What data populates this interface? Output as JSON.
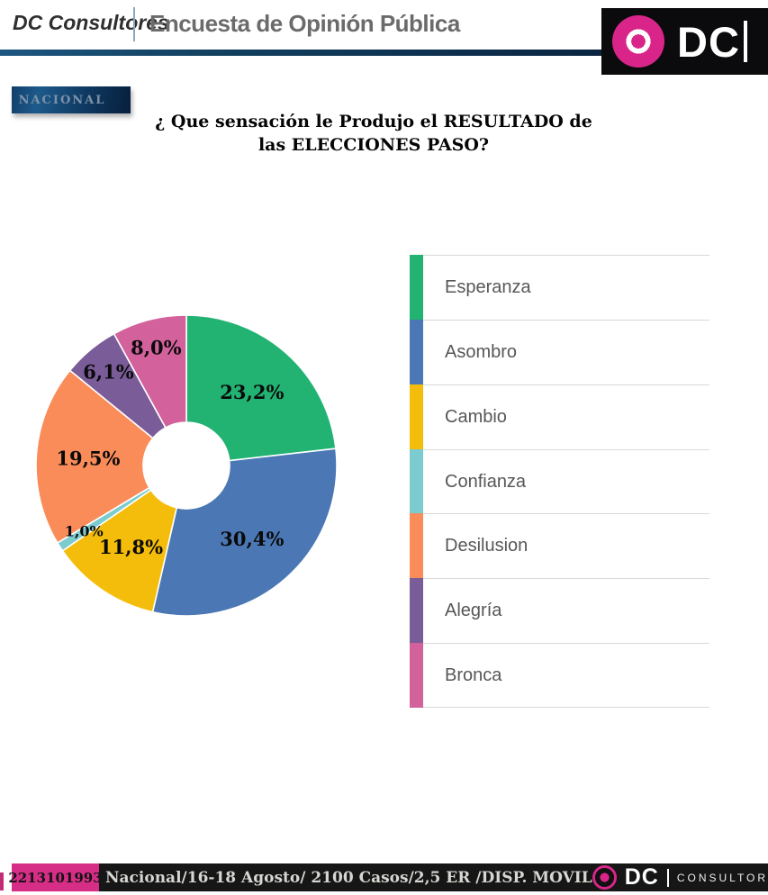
{
  "header": {
    "brand": "DC Consultores",
    "title": "Encuesta de Opinión Pública",
    "logo_text": "DC"
  },
  "region_badge": "NACIONAL",
  "question_line1": "¿ Que sensación le Produjo el RESULTADO de",
  "question_line2": "las ELECCIONES PASO?",
  "chart_data": {
    "type": "pie",
    "donut": true,
    "start_angle": "12 o'clock, clockwise",
    "title": "¿ Que sensación le Produjo el RESULTADO de las ELECCIONES PASO?",
    "categories": [
      "Esperanza",
      "Asombro",
      "Cambio",
      "Confianza",
      "Desilusion",
      "Alegría",
      "Bronca"
    ],
    "values": [
      23.2,
      30.4,
      11.8,
      1.0,
      19.5,
      6.1,
      8.0
    ],
    "value_labels": [
      "23,2%",
      "30,4%",
      "11,8%",
      "1,0%",
      "19,5%",
      "6,1%",
      "8,0%"
    ],
    "colors": [
      "#22B373",
      "#4B78B5",
      "#F5BD0B",
      "#7BCBCF",
      "#FA8C59",
      "#7A5C99",
      "#D2619C"
    ],
    "legend_position": "right"
  },
  "footer": {
    "code": "2213101993",
    "info": "Nacional/16-18 Agosto/ 2100 Casos/2,5 ER /DISP. MOVIL",
    "logo_text": "DC",
    "logo_sub": "CONSULTORES"
  }
}
